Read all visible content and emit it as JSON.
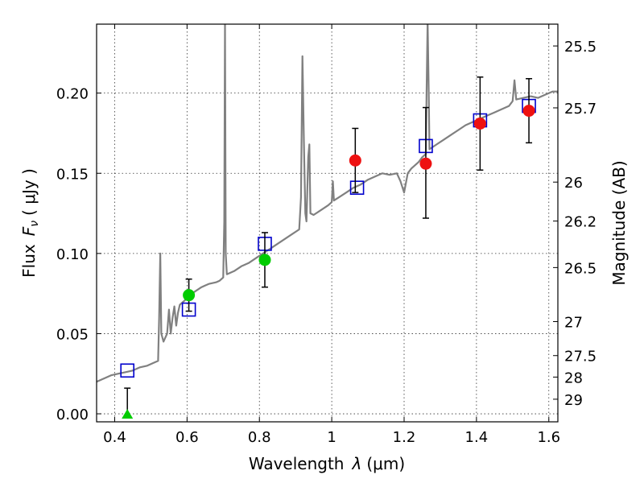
{
  "chart_data": {
    "type": "scatter",
    "title": "",
    "xlabel_prefix": "Wavelength",
    "xlabel_symbol": "λ",
    "xlabel_unit": "(μm)",
    "ylabel_prefix": "Flux",
    "ylabel_symbol": "F",
    "ylabel_sub": "ν",
    "ylabel_unit": "( μJy )",
    "y2label": "Magnitude (AB)",
    "xlim": [
      0.35,
      1.625
    ],
    "ylim": [
      -0.005,
      0.243
    ],
    "grid": true,
    "x_ticks": [
      0.4,
      0.6,
      0.8,
      1.0,
      1.2,
      1.4,
      1.6
    ],
    "x_tick_labels": [
      "0.4",
      "0.6",
      "0.8",
      "1",
      "1.2",
      "1.4",
      "1.6"
    ],
    "y_ticks": [
      0.0,
      0.05,
      0.1,
      0.15,
      0.2
    ],
    "y_tick_labels": [
      "0.00",
      "0.05",
      "0.10",
      "0.15",
      "0.20"
    ],
    "magnitude_ticks": [
      {
        "label": "25.5",
        "flux": 0.2294
      },
      {
        "label": "25.7",
        "flux": 0.1908
      },
      {
        "label": "26",
        "flux": 0.1445
      },
      {
        "label": "26.2",
        "flux": 0.1202
      },
      {
        "label": "26.5",
        "flux": 0.0912
      },
      {
        "label": "27",
        "flux": 0.0575
      },
      {
        "label": "27.5",
        "flux": 0.0363
      },
      {
        "label": "28",
        "flux": 0.0229
      },
      {
        "label": "29",
        "flux": 0.0091
      }
    ],
    "series": [
      {
        "kind": "spectrum",
        "color": "#808080",
        "points": [
          [
            0.35,
            0.02
          ],
          [
            0.37,
            0.022
          ],
          [
            0.39,
            0.024
          ],
          [
            0.41,
            0.025
          ],
          [
            0.43,
            0.026
          ],
          [
            0.45,
            0.027
          ],
          [
            0.47,
            0.029
          ],
          [
            0.49,
            0.03
          ],
          [
            0.51,
            0.032
          ],
          [
            0.52,
            0.033
          ],
          [
            0.523,
            0.06
          ],
          [
            0.526,
            0.1
          ],
          [
            0.529,
            0.05
          ],
          [
            0.535,
            0.045
          ],
          [
            0.545,
            0.05
          ],
          [
            0.55,
            0.065
          ],
          [
            0.555,
            0.05
          ],
          [
            0.56,
            0.06
          ],
          [
            0.565,
            0.067
          ],
          [
            0.57,
            0.055
          ],
          [
            0.575,
            0.063
          ],
          [
            0.58,
            0.068
          ],
          [
            0.59,
            0.07
          ],
          [
            0.6,
            0.072
          ],
          [
            0.62,
            0.076
          ],
          [
            0.64,
            0.079
          ],
          [
            0.66,
            0.081
          ],
          [
            0.68,
            0.082
          ],
          [
            0.69,
            0.083
          ],
          [
            0.7,
            0.085
          ],
          [
            0.703,
            0.12
          ],
          [
            0.705,
            0.245
          ],
          [
            0.707,
            0.1
          ],
          [
            0.71,
            0.087
          ],
          [
            0.73,
            0.089
          ],
          [
            0.75,
            0.092
          ],
          [
            0.77,
            0.094
          ],
          [
            0.79,
            0.097
          ],
          [
            0.81,
            0.1
          ],
          [
            0.83,
            0.103
          ],
          [
            0.85,
            0.106
          ],
          [
            0.87,
            0.109
          ],
          [
            0.89,
            0.112
          ],
          [
            0.91,
            0.115
          ],
          [
            0.915,
            0.135
          ],
          [
            0.919,
            0.223
          ],
          [
            0.923,
            0.17
          ],
          [
            0.927,
            0.125
          ],
          [
            0.93,
            0.12
          ],
          [
            0.935,
            0.16
          ],
          [
            0.938,
            0.168
          ],
          [
            0.941,
            0.125
          ],
          [
            0.95,
            0.124
          ],
          [
            0.97,
            0.127
          ],
          [
            0.99,
            0.13
          ],
          [
            1.0,
            0.132
          ],
          [
            1.003,
            0.145
          ],
          [
            1.006,
            0.133
          ],
          [
            1.02,
            0.135
          ],
          [
            1.04,
            0.138
          ],
          [
            1.06,
            0.141
          ],
          [
            1.08,
            0.143
          ],
          [
            1.1,
            0.146
          ],
          [
            1.12,
            0.148
          ],
          [
            1.14,
            0.15
          ],
          [
            1.16,
            0.149
          ],
          [
            1.18,
            0.15
          ],
          [
            1.19,
            0.145
          ],
          [
            1.2,
            0.138
          ],
          [
            1.21,
            0.15
          ],
          [
            1.22,
            0.153
          ],
          [
            1.24,
            0.157
          ],
          [
            1.25,
            0.16
          ],
          [
            1.26,
            0.162
          ],
          [
            1.262,
            0.2
          ],
          [
            1.265,
            0.245
          ],
          [
            1.268,
            0.2
          ],
          [
            1.27,
            0.165
          ],
          [
            1.29,
            0.168
          ],
          [
            1.31,
            0.171
          ],
          [
            1.33,
            0.174
          ],
          [
            1.35,
            0.177
          ],
          [
            1.37,
            0.18
          ],
          [
            1.39,
            0.182
          ],
          [
            1.41,
            0.184
          ],
          [
            1.43,
            0.186
          ],
          [
            1.45,
            0.188
          ],
          [
            1.47,
            0.19
          ],
          [
            1.49,
            0.192
          ],
          [
            1.5,
            0.195
          ],
          [
            1.505,
            0.208
          ],
          [
            1.51,
            0.196
          ],
          [
            1.53,
            0.197
          ],
          [
            1.55,
            0.198
          ],
          [
            1.57,
            0.197
          ],
          [
            1.59,
            0.199
          ],
          [
            1.61,
            0.201
          ],
          [
            1.625,
            0.201
          ]
        ]
      },
      {
        "kind": "model",
        "marker": "square",
        "color": "#0000cc",
        "points": [
          [
            0.435,
            0.027
          ],
          [
            0.605,
            0.065
          ],
          [
            0.815,
            0.106
          ],
          [
            1.07,
            0.141
          ],
          [
            1.26,
            0.167
          ],
          [
            1.41,
            0.183
          ],
          [
            1.545,
            0.192
          ]
        ]
      },
      {
        "kind": "observed",
        "marker": "circle",
        "color": "#00cc00",
        "points": [
          [
            0.605,
            0.074,
            0.064,
            0.084
          ],
          [
            0.815,
            0.096,
            0.079,
            0.113
          ]
        ]
      },
      {
        "kind": "observed",
        "marker": "circle",
        "color": "#ee1111",
        "points": [
          [
            1.065,
            0.158,
            0.138,
            0.178
          ],
          [
            1.26,
            0.156,
            0.122,
            0.191
          ],
          [
            1.41,
            0.181,
            0.152,
            0.21
          ],
          [
            1.545,
            0.189,
            0.169,
            0.209
          ]
        ]
      },
      {
        "kind": "upper_limit",
        "marker": "triangle",
        "color": "#00cc00",
        "points": [
          [
            0.435,
            0.0,
            0.0,
            0.016
          ]
        ]
      }
    ]
  }
}
